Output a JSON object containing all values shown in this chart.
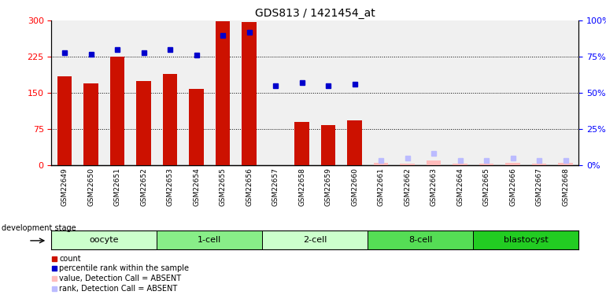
{
  "title": "GDS813 / 1421454_at",
  "samples": [
    "GSM22649",
    "GSM22650",
    "GSM22651",
    "GSM22652",
    "GSM22653",
    "GSM22654",
    "GSM22655",
    "GSM22656",
    "GSM22657",
    "GSM22658",
    "GSM22659",
    "GSM22660",
    "GSM22661",
    "GSM22662",
    "GSM22663",
    "GSM22664",
    "GSM22665",
    "GSM22666",
    "GSM22667",
    "GSM22668"
  ],
  "count_values": [
    185,
    170,
    225,
    175,
    190,
    158,
    298,
    297,
    0,
    90,
    83,
    93,
    0,
    0,
    0,
    0,
    0,
    0,
    0,
    0
  ],
  "count_absent": [
    false,
    false,
    false,
    false,
    false,
    false,
    false,
    false,
    false,
    false,
    false,
    false,
    true,
    true,
    true,
    true,
    true,
    true,
    true,
    true
  ],
  "count_absent_values": [
    0,
    0,
    0,
    0,
    0,
    0,
    0,
    0,
    0,
    0,
    0,
    0,
    5,
    3,
    10,
    3,
    3,
    5,
    3,
    5
  ],
  "rank_values": [
    78,
    77,
    80,
    78,
    80,
    76,
    90,
    92,
    55,
    57,
    55,
    56,
    0,
    0,
    0,
    0,
    0,
    0,
    0,
    0
  ],
  "rank_absent": [
    false,
    false,
    false,
    false,
    false,
    false,
    false,
    false,
    false,
    false,
    false,
    false,
    true,
    true,
    true,
    true,
    true,
    true,
    true,
    true
  ],
  "rank_absent_values": [
    0,
    0,
    0,
    0,
    0,
    0,
    0,
    0,
    0,
    0,
    0,
    0,
    3,
    5,
    8,
    3,
    3,
    5,
    3,
    3
  ],
  "stages": [
    {
      "label": "oocyte",
      "start": 0,
      "end": 4,
      "color": "#ccffcc"
    },
    {
      "label": "1-cell",
      "start": 4,
      "end": 8,
      "color": "#88ee88"
    },
    {
      "label": "2-cell",
      "start": 8,
      "end": 12,
      "color": "#ccffcc"
    },
    {
      "label": "8-cell",
      "start": 12,
      "end": 16,
      "color": "#55dd55"
    },
    {
      "label": "blastocyst",
      "start": 16,
      "end": 20,
      "color": "#22cc22"
    }
  ],
  "ylim_left": [
    0,
    300
  ],
  "ylim_right": [
    0,
    100
  ],
  "yticks_left": [
    0,
    75,
    150,
    225,
    300
  ],
  "yticks_right": [
    0,
    25,
    50,
    75,
    100
  ],
  "bar_color": "#cc1100",
  "rank_color": "#0000cc",
  "absent_bar_color": "#ffbbbb",
  "absent_rank_color": "#bbbbff",
  "background_color": "#ffffff",
  "tick_label_bg": "#dddddd",
  "legend_items": [
    {
      "label": "count",
      "color": "#cc1100"
    },
    {
      "label": "percentile rank within the sample",
      "color": "#0000cc"
    },
    {
      "label": "value, Detection Call = ABSENT",
      "color": "#ffbbbb"
    },
    {
      "label": "rank, Detection Call = ABSENT",
      "color": "#bbbbff"
    }
  ]
}
